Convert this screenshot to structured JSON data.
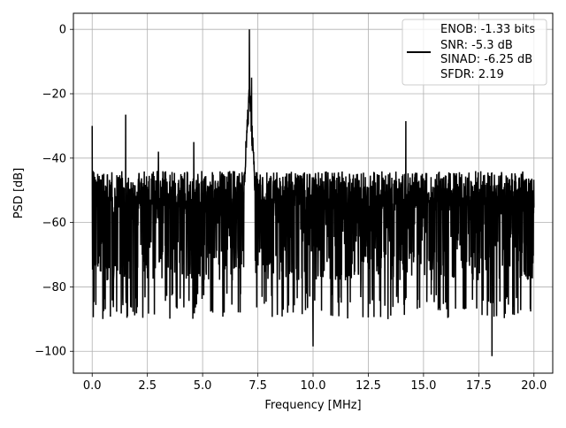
{
  "chart_data": {
    "type": "line",
    "xlabel": "Frequency [MHz]",
    "ylabel": "PSD [dB]",
    "xlim": [
      -0.85,
      20.85
    ],
    "ylim": [
      -106.8,
      5
    ],
    "xticks": [
      0.0,
      2.5,
      5.0,
      7.5,
      10.0,
      12.5,
      15.0,
      17.5,
      20.0
    ],
    "xtick_labels": [
      "0.0",
      "2.5",
      "5.0",
      "7.5",
      "10.0",
      "12.5",
      "15.0",
      "17.5",
      "20.0"
    ],
    "yticks": [
      0,
      -20,
      -40,
      -60,
      -80,
      -100
    ],
    "ytick_labels": [
      "0",
      "−20",
      "−40",
      "−60",
      "−80",
      "−100"
    ],
    "grid": true,
    "legend_position": "top-right",
    "series": [
      {
        "color": "#000000",
        "noise_floor_db": [
          -90,
          -42
        ],
        "peaks": [
          {
            "x": 0.0,
            "y": -30
          },
          {
            "x": 1.52,
            "y": -26.5
          },
          {
            "x": 3.0,
            "y": -38
          },
          {
            "x": 4.6,
            "y": -35
          },
          {
            "x": 7.12,
            "y": 0
          },
          {
            "x": 7.22,
            "y": -15
          },
          {
            "x": 10.0,
            "y": -98.5
          },
          {
            "x": 14.2,
            "y": -28.5
          },
          {
            "x": 18.1,
            "y": -101.5
          }
        ]
      }
    ],
    "legend": {
      "lines": [
        "ENOB: -1.33 bits",
        "SNR: -5.3 dB",
        "SINAD: -6.25 dB",
        "SFDR: 2.19"
      ]
    }
  }
}
